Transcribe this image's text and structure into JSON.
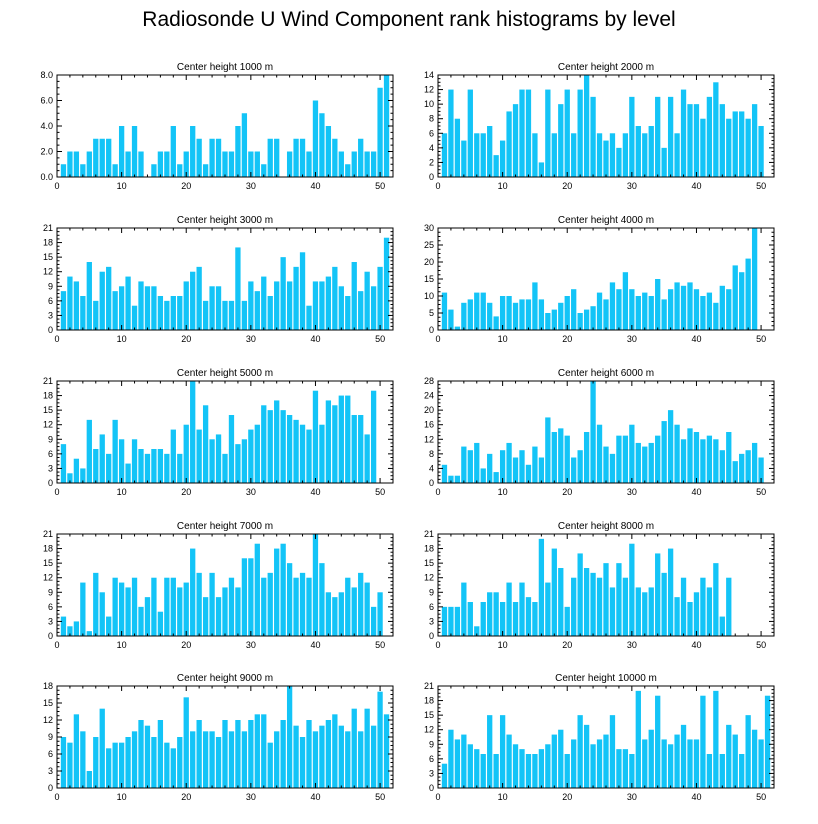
{
  "title": "Radiosonde U Wind Component rank histograms by level",
  "bar_color": "#13c4f7",
  "chart_data": [
    {
      "type": "bar",
      "title": "Center height 1000 m",
      "ylim": [
        0,
        8
      ],
      "yticks": [
        0,
        2,
        4,
        6,
        8
      ],
      "ytick_labels": [
        "0.0",
        "2.0",
        "4.0",
        "6.0",
        "8.0"
      ],
      "xlim": [
        0,
        52
      ],
      "xticks": [
        0,
        10,
        20,
        30,
        40,
        50
      ],
      "xlabel": "",
      "ylabel": "",
      "values": [
        1,
        2,
        2,
        1,
        2,
        3,
        3,
        3,
        1,
        4,
        2,
        4,
        2,
        0,
        1,
        2,
        2,
        4,
        1,
        2,
        4,
        3,
        1,
        3,
        3,
        2,
        2,
        4,
        5,
        2,
        2,
        1,
        3,
        3,
        0,
        2,
        3,
        3,
        2,
        6,
        5,
        4,
        3,
        2,
        1,
        2,
        3,
        2,
        2,
        7,
        8
      ]
    },
    {
      "type": "bar",
      "title": "Center height 2000 m",
      "ylim": [
        0,
        14
      ],
      "yticks": [
        0,
        2,
        4,
        6,
        8,
        10,
        12,
        14
      ],
      "ytick_labels": [
        "0",
        "2",
        "4",
        "6",
        "8",
        "10",
        "12",
        "14"
      ],
      "xlim": [
        0,
        52
      ],
      "xticks": [
        0,
        10,
        20,
        30,
        40,
        50
      ],
      "xlabel": "",
      "ylabel": "",
      "values": [
        6,
        12,
        8,
        5,
        12,
        6,
        6,
        7,
        3,
        5,
        9,
        10,
        12,
        12,
        6,
        2,
        12,
        6,
        10,
        12,
        6,
        12,
        14,
        11,
        6,
        5,
        6,
        4,
        6,
        11,
        7,
        6,
        7,
        11,
        4,
        11,
        6,
        12,
        10,
        10,
        8,
        11,
        13,
        10,
        8,
        9,
        9,
        8,
        10,
        7
      ]
    },
    {
      "type": "bar",
      "title": "Center height 3000 m",
      "ylim": [
        0,
        21
      ],
      "yticks": [
        0,
        3,
        6,
        9,
        12,
        15,
        18,
        21
      ],
      "ytick_labels": [
        "0",
        "3",
        "6",
        "9",
        "12",
        "15",
        "18",
        "21"
      ],
      "xlim": [
        0,
        52
      ],
      "xticks": [
        0,
        10,
        20,
        30,
        40,
        50
      ],
      "xlabel": "",
      "ylabel": "",
      "values": [
        8,
        11,
        10,
        7,
        14,
        6,
        12,
        13,
        8,
        9,
        11,
        5,
        10,
        9,
        9,
        7,
        6,
        7,
        7,
        10,
        12,
        13,
        6,
        9,
        9,
        6,
        6,
        17,
        6,
        10,
        8,
        11,
        7,
        10,
        15,
        10,
        13,
        16,
        5,
        10,
        10,
        11,
        13,
        9,
        7,
        14,
        8,
        12,
        9,
        13,
        19
      ]
    },
    {
      "type": "bar",
      "title": "Center height 4000 m",
      "ylim": [
        0,
        30
      ],
      "yticks": [
        0,
        5,
        10,
        15,
        20,
        25,
        30
      ],
      "ytick_labels": [
        "0",
        "5",
        "10",
        "15",
        "20",
        "25",
        "30"
      ],
      "xlim": [
        0,
        52
      ],
      "xticks": [
        0,
        10,
        20,
        30,
        40,
        50
      ],
      "xlabel": "",
      "ylabel": "",
      "values": [
        11,
        6,
        1,
        8,
        9,
        11,
        11,
        8,
        4,
        10,
        10,
        8,
        9,
        9,
        14,
        9,
        5,
        6,
        8,
        10,
        12,
        5,
        6,
        7,
        11,
        9,
        14,
        12,
        17,
        12,
        10,
        11,
        10,
        15,
        9,
        12,
        14,
        13,
        14,
        12,
        10,
        11,
        8,
        13,
        12,
        19,
        17,
        21,
        30
      ]
    },
    {
      "type": "bar",
      "title": "Center height 5000 m",
      "ylim": [
        0,
        21
      ],
      "yticks": [
        0,
        3,
        6,
        9,
        12,
        15,
        18,
        21
      ],
      "ytick_labels": [
        "0",
        "3",
        "6",
        "9",
        "12",
        "15",
        "18",
        "21"
      ],
      "xlim": [
        0,
        52
      ],
      "xticks": [
        0,
        10,
        20,
        30,
        40,
        50
      ],
      "xlabel": "",
      "ylabel": "",
      "values": [
        8,
        2,
        5,
        3,
        13,
        7,
        10,
        6,
        13,
        9,
        4,
        9,
        7,
        6,
        7,
        7,
        6,
        11,
        6,
        12,
        21,
        11,
        16,
        9,
        10,
        6,
        14,
        8,
        9,
        11,
        12,
        16,
        15,
        17,
        15,
        14,
        13,
        12,
        11,
        19,
        12,
        17,
        16,
        18,
        18,
        14,
        14,
        10,
        19
      ]
    },
    {
      "type": "bar",
      "title": "Center height 6000 m",
      "ylim": [
        0,
        28
      ],
      "yticks": [
        0,
        4,
        8,
        12,
        16,
        20,
        24,
        28
      ],
      "ytick_labels": [
        "0",
        "4",
        "8",
        "12",
        "16",
        "20",
        "24",
        "28"
      ],
      "xlim": [
        0,
        52
      ],
      "xticks": [
        0,
        10,
        20,
        30,
        40,
        50
      ],
      "xlabel": "",
      "ylabel": "",
      "values": [
        5,
        2,
        2,
        10,
        9,
        11,
        4,
        8,
        3,
        9,
        11,
        7,
        9,
        5,
        10,
        7,
        18,
        14,
        15,
        13,
        7,
        9,
        14,
        28,
        16,
        10,
        8,
        13,
        13,
        16,
        11,
        10,
        11,
        13,
        17,
        20,
        16,
        12,
        15,
        14,
        12,
        13,
        12,
        9,
        14,
        6,
        8,
        9,
        11,
        7
      ]
    },
    {
      "type": "bar",
      "title": "Center height 7000 m",
      "ylim": [
        0,
        21
      ],
      "yticks": [
        0,
        3,
        6,
        9,
        12,
        15,
        18,
        21
      ],
      "ytick_labels": [
        "0",
        "3",
        "6",
        "9",
        "12",
        "15",
        "18",
        "21"
      ],
      "xlim": [
        0,
        52
      ],
      "xticks": [
        0,
        10,
        20,
        30,
        40,
        50
      ],
      "xlabel": "",
      "ylabel": "",
      "values": [
        4,
        2,
        3,
        11,
        1,
        13,
        9,
        4,
        12,
        11,
        10,
        12,
        6,
        8,
        12,
        5,
        12,
        12,
        10,
        11,
        18,
        13,
        8,
        13,
        8,
        10,
        12,
        10,
        16,
        16,
        19,
        12,
        13,
        18,
        19,
        15,
        12,
        13,
        12,
        21,
        15,
        9,
        8,
        9,
        12,
        10,
        13,
        11,
        6,
        9
      ]
    },
    {
      "type": "bar",
      "title": "Center height 8000 m",
      "ylim": [
        0,
        21
      ],
      "yticks": [
        0,
        3,
        6,
        9,
        12,
        15,
        18,
        21
      ],
      "ytick_labels": [
        "0",
        "3",
        "6",
        "9",
        "12",
        "15",
        "18",
        "21"
      ],
      "xlim": [
        0,
        52
      ],
      "xticks": [
        0,
        10,
        20,
        30,
        40,
        50
      ],
      "xlabel": "",
      "ylabel": "",
      "values": [
        6,
        6,
        6,
        11,
        7,
        2,
        7,
        9,
        9,
        7,
        11,
        7,
        11,
        8,
        7,
        20,
        11,
        18,
        14,
        6,
        12,
        17,
        14,
        13,
        12,
        15,
        10,
        15,
        12,
        19,
        10,
        9,
        10,
        17,
        13,
        18,
        8,
        12,
        7,
        9,
        12,
        10,
        15,
        4,
        12
      ]
    },
    {
      "type": "bar",
      "title": "Center height 9000 m",
      "ylim": [
        0,
        18
      ],
      "yticks": [
        0,
        3,
        6,
        9,
        12,
        15,
        18
      ],
      "ytick_labels": [
        "0",
        "3",
        "6",
        "9",
        "12",
        "15",
        "18"
      ],
      "xlim": [
        0,
        52
      ],
      "xticks": [
        0,
        10,
        20,
        30,
        40,
        50
      ],
      "xlabel": "",
      "ylabel": "",
      "values": [
        9,
        8,
        13,
        10,
        3,
        9,
        14,
        7,
        8,
        8,
        9,
        10,
        12,
        11,
        9,
        12,
        8,
        7,
        9,
        16,
        10,
        12,
        10,
        10,
        9,
        12,
        10,
        12,
        10,
        12,
        13,
        13,
        8,
        10,
        12,
        18,
        11,
        9,
        12,
        10,
        11,
        12,
        13,
        11,
        10,
        14,
        10,
        14,
        11,
        17,
        13
      ]
    },
    {
      "type": "bar",
      "title": "Center height 10000 m",
      "ylim": [
        0,
        21
      ],
      "yticks": [
        0,
        3,
        6,
        9,
        12,
        15,
        18,
        21
      ],
      "ytick_labels": [
        "0",
        "3",
        "6",
        "9",
        "12",
        "15",
        "18",
        "21"
      ],
      "xlim": [
        0,
        52
      ],
      "xticks": [
        0,
        10,
        20,
        30,
        40,
        50
      ],
      "xlabel": "",
      "ylabel": "",
      "values": [
        5,
        12,
        10,
        11,
        9,
        8,
        7,
        15,
        7,
        15,
        11,
        9,
        8,
        7,
        7,
        8,
        9,
        11,
        12,
        7,
        10,
        15,
        13,
        9,
        10,
        11,
        15,
        8,
        8,
        7,
        20,
        10,
        12,
        19,
        10,
        9,
        11,
        13,
        10,
        10,
        19,
        7,
        20,
        7,
        13,
        11,
        7,
        15,
        12,
        10,
        19
      ]
    }
  ]
}
